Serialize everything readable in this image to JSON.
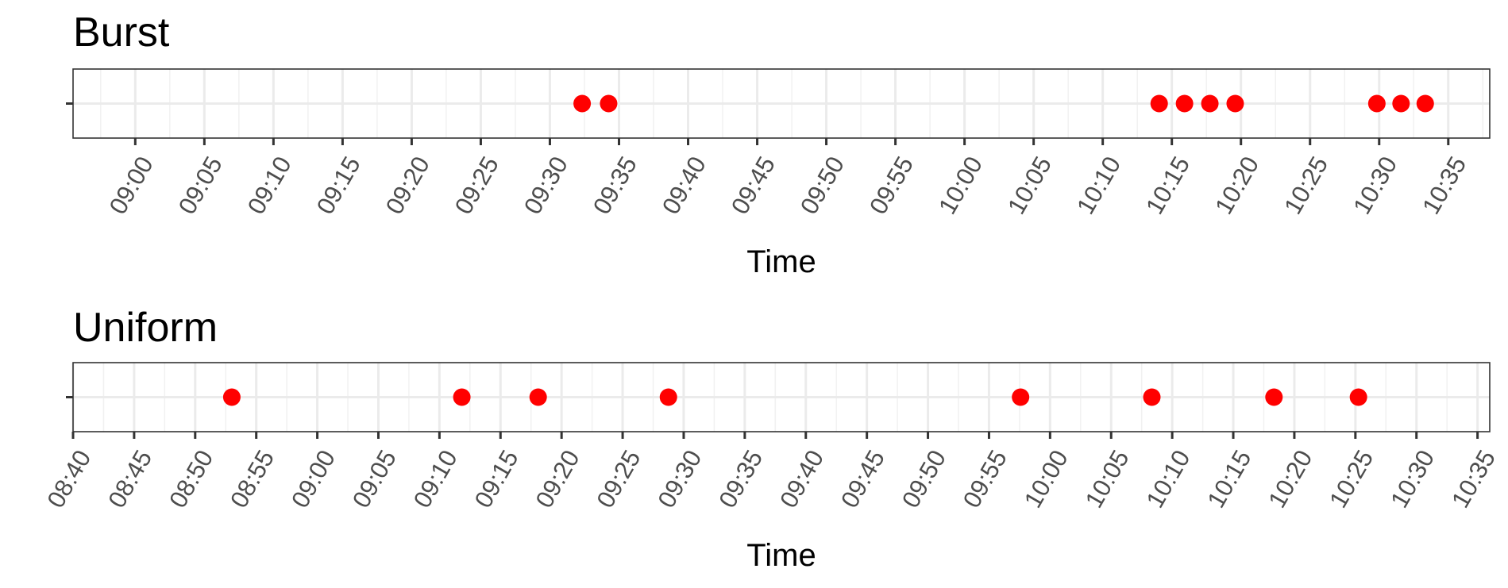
{
  "chart_data": [
    {
      "type": "scatter",
      "title": "Burst",
      "xlabel": "Time",
      "ylabel": "",
      "x_scale": "time",
      "xlim": [
        "08:55:30",
        "10:38:00"
      ],
      "x_ticks": [
        "09:00",
        "09:05",
        "09:10",
        "09:15",
        "09:20",
        "09:25",
        "09:30",
        "09:35",
        "09:40",
        "09:45",
        "09:50",
        "09:55",
        "10:00",
        "10:05",
        "10:10",
        "10:15",
        "10:20",
        "10:25",
        "10:30",
        "10:35"
      ],
      "grid": true,
      "legend": "none",
      "point_color": "#ff0000",
      "series": [
        {
          "x": [
            "09:32:20",
            "09:34:15",
            "10:14:05",
            "10:15:55",
            "10:17:45",
            "10:19:35",
            "10:29:50",
            "10:31:35",
            "10:33:20"
          ]
        }
      ]
    },
    {
      "type": "scatter",
      "title": "Uniform",
      "xlabel": "Time",
      "ylabel": "",
      "x_scale": "time",
      "xlim": [
        "08:40:00",
        "10:36:00"
      ],
      "x_ticks": [
        "08:40",
        "08:45",
        "08:50",
        "08:55",
        "09:00",
        "09:05",
        "09:10",
        "09:15",
        "09:20",
        "09:25",
        "09:30",
        "09:35",
        "09:40",
        "09:45",
        "09:50",
        "09:55",
        "10:00",
        "10:05",
        "10:10",
        "10:15",
        "10:20",
        "10:25",
        "10:30",
        "10:35"
      ],
      "grid": true,
      "legend": "none",
      "point_color": "#ff0000",
      "series": [
        {
          "x": [
            "08:53:00",
            "09:11:50",
            "09:18:05",
            "09:28:45",
            "09:57:35",
            "10:08:20",
            "10:18:20",
            "10:25:15"
          ]
        }
      ]
    }
  ]
}
